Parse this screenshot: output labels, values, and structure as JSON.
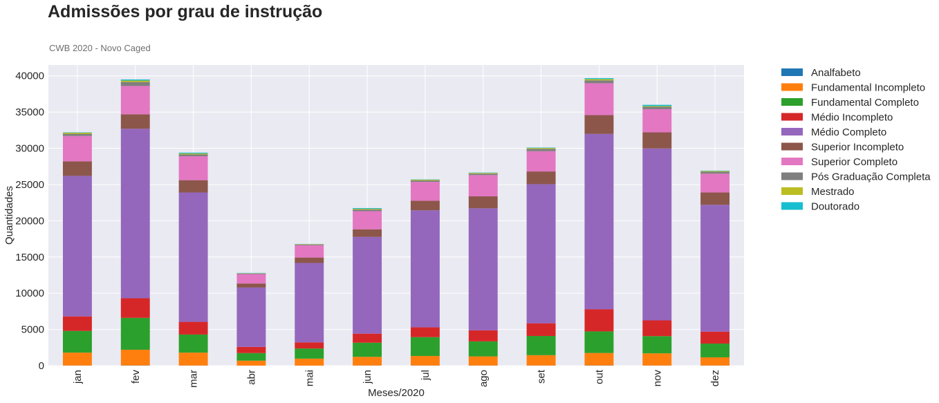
{
  "chart_data": {
    "type": "bar",
    "stacked": true,
    "title": "Admissões por grau de instrução",
    "subtitle": "CWB 2020 - Novo Caged",
    "xlabel": "Meses/2020",
    "ylabel": "Quantidades",
    "ylim": [
      0,
      41500
    ],
    "yticks": [
      0,
      5000,
      10000,
      15000,
      20000,
      25000,
      30000,
      35000,
      40000
    ],
    "grid": true,
    "legend_position": "outside-right",
    "categories": [
      "jan",
      "fev",
      "mar",
      "abr",
      "mai",
      "jun",
      "jul",
      "ago",
      "set",
      "out",
      "nov",
      "dez"
    ],
    "series": [
      {
        "name": "Analfabeto",
        "color": "#1f77b4",
        "values": [
          20,
          30,
          20,
          10,
          10,
          20,
          20,
          20,
          20,
          30,
          20,
          20
        ]
      },
      {
        "name": "Fundamental Incompleto",
        "color": "#ff7f0e",
        "values": [
          1780,
          2170,
          1780,
          680,
          960,
          1200,
          1320,
          1260,
          1430,
          1720,
          1680,
          1130
        ]
      },
      {
        "name": "Fundamental Completo",
        "color": "#2ca02c",
        "values": [
          3000,
          4400,
          2500,
          1050,
          1400,
          1950,
          2600,
          2070,
          2650,
          2980,
          2380,
          1900
        ]
      },
      {
        "name": "Médio Incompleto",
        "color": "#d62728",
        "values": [
          2000,
          2700,
          1750,
          850,
          850,
          1250,
          1350,
          1530,
          1750,
          3050,
          2170,
          1650
        ]
      },
      {
        "name": "Médio Completo",
        "color": "#9467bd",
        "values": [
          19400,
          23400,
          17850,
          8200,
          10950,
          13350,
          16150,
          16840,
          19200,
          24200,
          23730,
          17500
        ]
      },
      {
        "name": "Superior Incompleto",
        "color": "#8c564b",
        "values": [
          2000,
          2000,
          1700,
          550,
          750,
          1050,
          1320,
          1650,
          1750,
          2600,
          2220,
          1700
        ]
      },
      {
        "name": "Superior Completo",
        "color": "#e377c2",
        "values": [
          3500,
          3900,
          3300,
          1300,
          1700,
          2500,
          2600,
          2930,
          2800,
          4400,
          3200,
          2600
        ]
      },
      {
        "name": "Pós Graduação Completa",
        "color": "#7f7f7f",
        "values": [
          300,
          550,
          270,
          80,
          110,
          230,
          200,
          200,
          320,
          400,
          330,
          270
        ]
      },
      {
        "name": "Mestrado",
        "color": "#bcbd22",
        "values": [
          150,
          200,
          120,
          40,
          50,
          100,
          100,
          100,
          120,
          170,
          100,
          100
        ]
      },
      {
        "name": "Doutorado",
        "color": "#17becf",
        "values": [
          50,
          150,
          110,
          40,
          20,
          100,
          40,
          50,
          60,
          130,
          170,
          50
        ]
      }
    ]
  }
}
